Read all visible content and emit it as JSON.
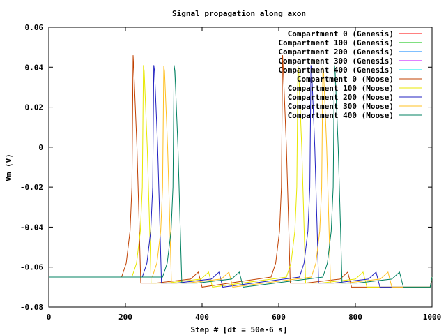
{
  "chart_data": {
    "type": "line",
    "title": "Signal propagation along axon",
    "xlabel": "Step # [dt = 50e-6 s]",
    "ylabel": "Vm (V)",
    "xlim": [
      0,
      1000
    ],
    "ylim": [
      -0.08,
      0.06
    ],
    "xticks": [
      0,
      200,
      400,
      600,
      800,
      1000
    ],
    "yticks": [
      -0.08,
      -0.06,
      -0.04,
      -0.02,
      0,
      0.02,
      0.04,
      0.06
    ],
    "grid": false,
    "legend_position": "top-right",
    "rest_potential": -0.065,
    "series": [
      {
        "name": "Compartment 0 (Genesis)",
        "color": "#ff0000",
        "peaks": []
      },
      {
        "name": "Compartment 100 (Genesis)",
        "color": "#00c000",
        "peaks": []
      },
      {
        "name": "Compartment 200 (Genesis)",
        "color": "#0080ff",
        "peaks": []
      },
      {
        "name": "Compartment 300 (Genesis)",
        "color": "#c000ff",
        "peaks": []
      },
      {
        "name": "Compartment 400 (Genesis)",
        "color": "#00eeee",
        "peaks": []
      },
      {
        "name": "Compartment 0 (Moose)",
        "color": "#c04000",
        "peaks": [
          220,
          610
        ],
        "peak": 0.046
      },
      {
        "name": "Compartment 100 (Moose)",
        "color": "#e8e800",
        "peaks": [
          247,
          650
        ],
        "peak": 0.041
      },
      {
        "name": "Compartment 200 (Moose)",
        "color": "#2020c0",
        "peaks": [
          274,
          684
        ],
        "peak": 0.041
      },
      {
        "name": "Compartment 300 (Moose)",
        "color": "#ffc020",
        "peaks": [
          300,
          715
        ],
        "peak": 0.0405
      },
      {
        "name": "Compartment 400 (Moose)",
        "color": "#008060",
        "peaks": [
          327,
          745
        ],
        "peak": 0.041
      }
    ]
  }
}
